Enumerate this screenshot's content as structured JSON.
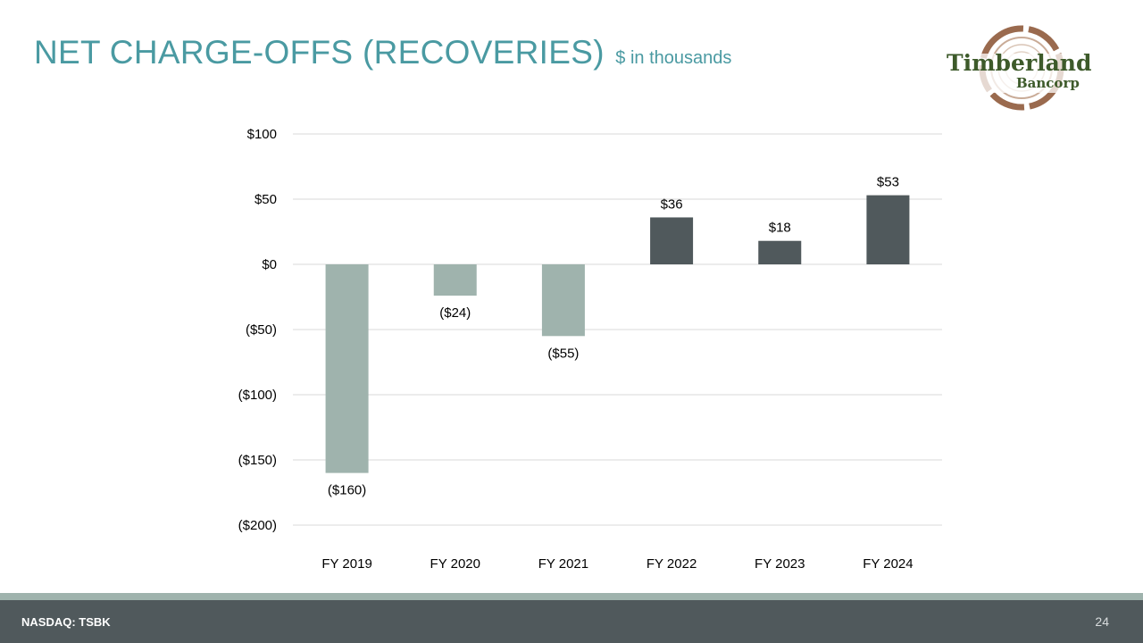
{
  "header": {
    "title": "NET CHARGE-OFFS (RECOVERIES)",
    "subtitle": "$ in thousands"
  },
  "logo": {
    "name_line1": "Timberland",
    "name_line2": "Bancorp",
    "colors": {
      "text": "#3d5a2a",
      "ring": "#9a6a4e"
    }
  },
  "chart_data": {
    "type": "bar",
    "title": "NET CHARGE-OFFS (RECOVERIES)",
    "subtitle": "$ in thousands",
    "categories": [
      "FY 2019",
      "FY 2020",
      "FY 2021",
      "FY 2022",
      "FY 2023",
      "FY 2024"
    ],
    "values": [
      -160,
      -24,
      -55,
      36,
      18,
      53
    ],
    "data_labels": [
      "($160)",
      "($24)",
      "($55)",
      "$36",
      "$18",
      "$53"
    ],
    "ylim": [
      -200,
      100
    ],
    "yticks": [
      100,
      50,
      0,
      -50,
      -100,
      -150,
      -200
    ],
    "ytick_labels": [
      "$100",
      "$50",
      "$0",
      "($50)",
      "($100)",
      "($150)",
      "($200)"
    ],
    "xlabel": "",
    "ylabel": "",
    "grid": true,
    "legend": "none",
    "colors": {
      "negative": "#9fb3ad",
      "positive": "#50595c",
      "grid": "#d9d9d9"
    }
  },
  "footer": {
    "ticker": "NASDAQ: TSBK",
    "page_number": "24"
  }
}
